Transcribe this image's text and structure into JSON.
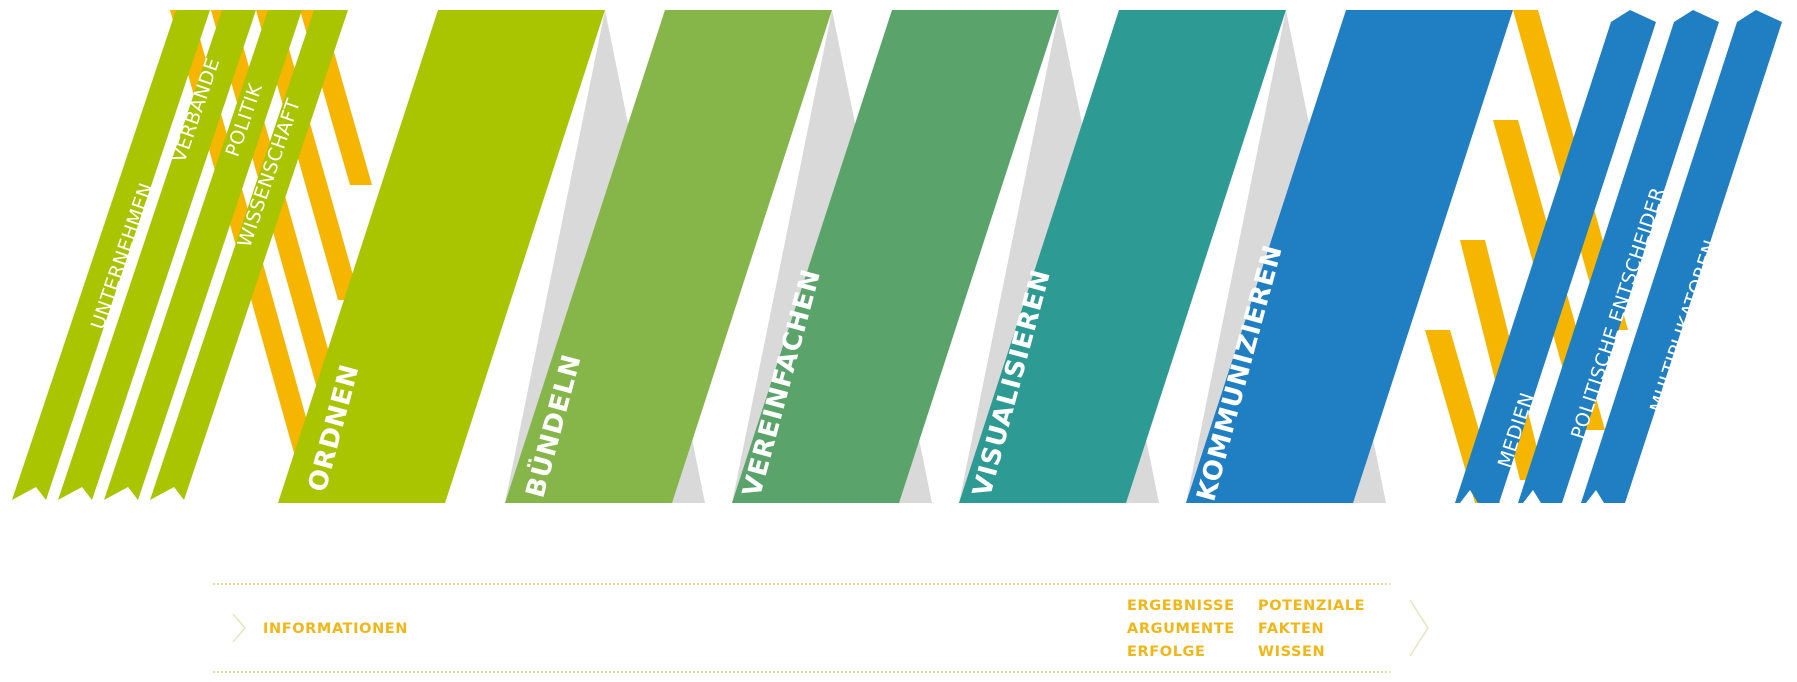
{
  "colors": {
    "yellow": "#f6b500",
    "lime": "#a9c400",
    "grey": "#d9d9d9",
    "stages": [
      "#a9c400",
      "#86b54a",
      "#5aa46b",
      "#2d9a93",
      "#1f7fc2"
    ],
    "blue": "#1f7fc2",
    "info_text": "#f2b617",
    "info_line": "#e3cf7c"
  },
  "sources": [
    {
      "label": "UNTERNEHMEN",
      "icon": "ribbon-notched-end"
    },
    {
      "label": "VERBÄNDE",
      "icon": "ribbon-notched-end"
    },
    {
      "label": "POLITIK",
      "icon": "ribbon-notched-end"
    },
    {
      "label": "WISSENSCHAFT",
      "icon": "ribbon-notched-end"
    }
  ],
  "stages": [
    {
      "label": "ORDNEN"
    },
    {
      "label": "BÜNDELN"
    },
    {
      "label": "VEREINFACHEN"
    },
    {
      "label": "VISUALISIEREN"
    },
    {
      "label": "KOMMUNIZIEREN"
    }
  ],
  "targets": [
    {
      "label": "MEDIEN",
      "icon": "arrow-tip-ribbon"
    },
    {
      "label": "POLITISCHE ENTSCHEIDER",
      "icon": "arrow-tip-ribbon"
    },
    {
      "label": "MULTIPLIKATOREN",
      "icon": "arrow-tip-ribbon"
    }
  ],
  "info_bar": {
    "input_label": "INFORMATIONEN",
    "outputs": [
      "ERGEBNISSE",
      "ARGUMENTE",
      "ERFOLGE",
      "POTENZIALE",
      "FAKTEN",
      "WISSEN"
    ]
  }
}
